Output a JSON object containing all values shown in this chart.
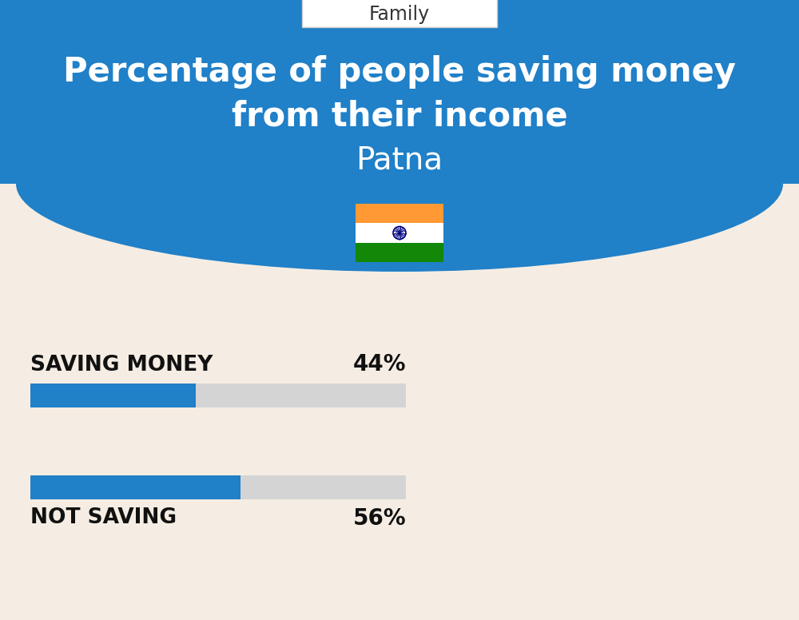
{
  "title_line1": "Percentage of people saving money",
  "title_line2": "from their income",
  "subtitle": "Patna",
  "category_label": "Family",
  "background_color": "#f5ede3",
  "header_bg_color": "#2080c8",
  "header_text_color": "#ffffff",
  "bar_color": "#2080c8",
  "bar_bg_color": "#d4d4d4",
  "bars": [
    {
      "label": "SAVING MONEY",
      "value": 44
    },
    {
      "label": "NOT SAVING",
      "value": 56
    }
  ],
  "title_fontsize": 30,
  "subtitle_fontsize": 28,
  "bar_label_fontsize": 19,
  "bar_value_fontsize": 20,
  "category_fontsize": 17,
  "fig_width": 10.0,
  "fig_height": 7.76,
  "dpi": 100
}
